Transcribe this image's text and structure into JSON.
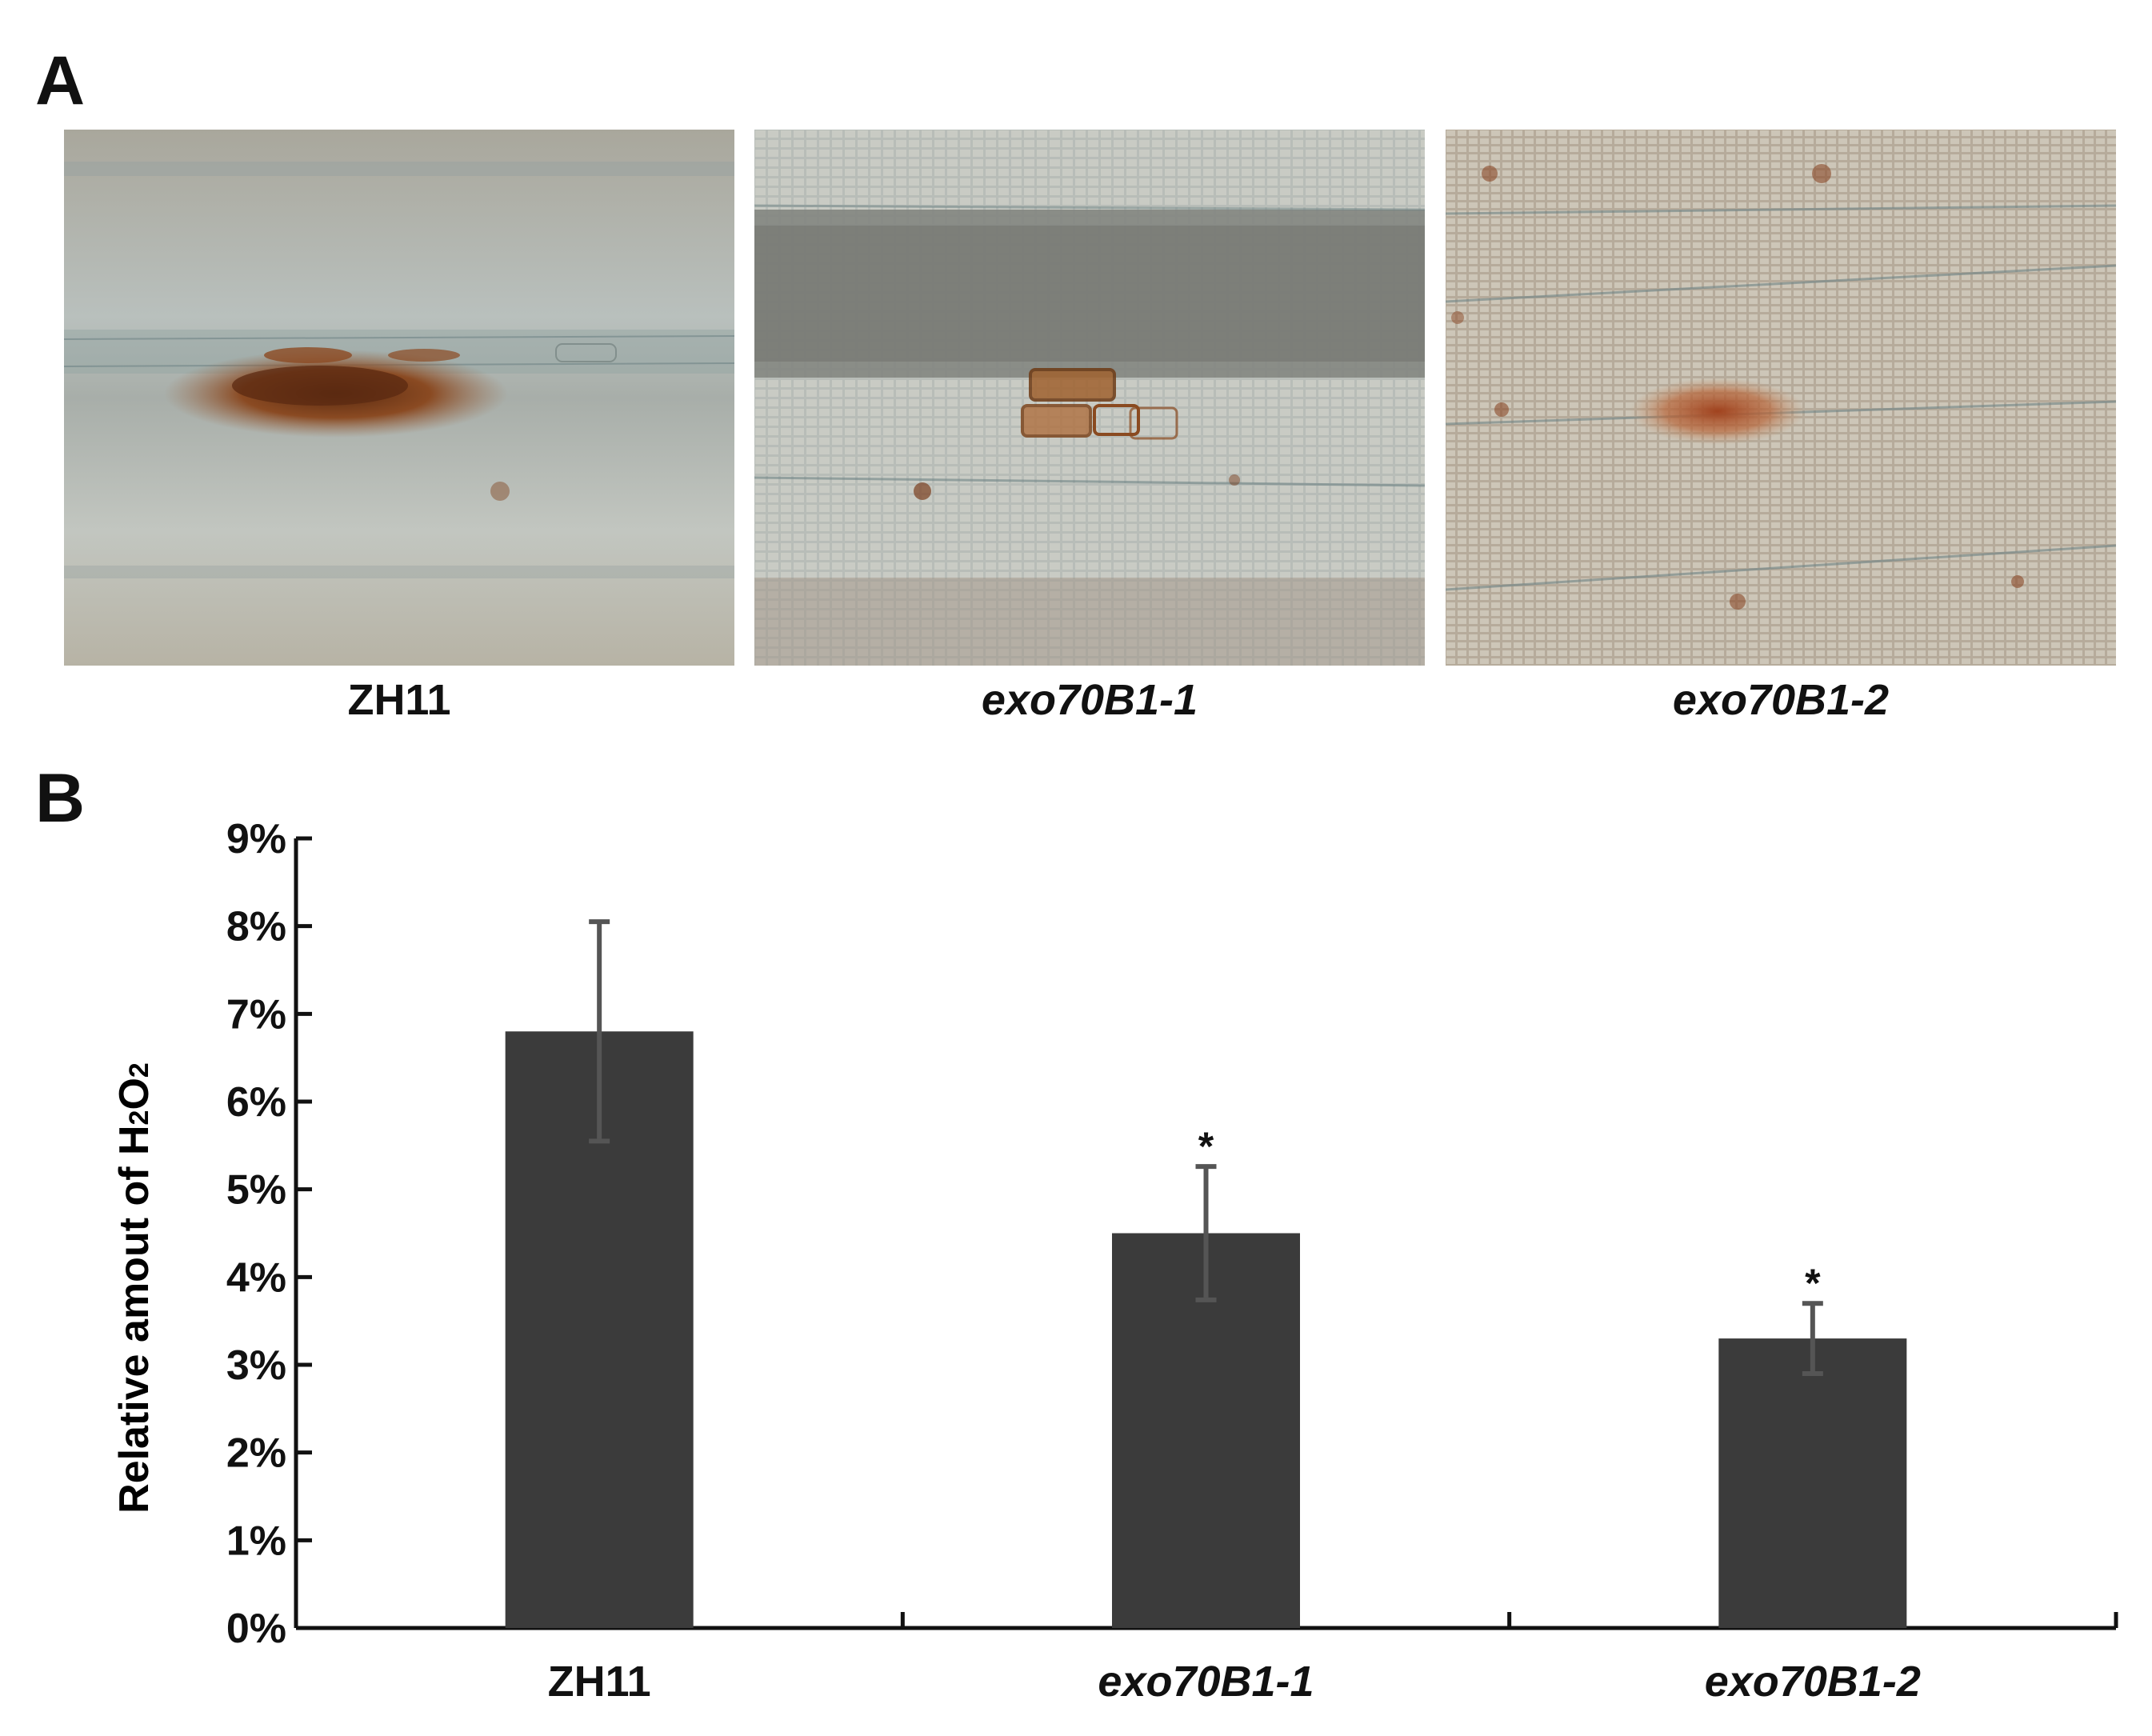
{
  "panel_a": {
    "letter": "A",
    "images": [
      {
        "label": "ZH11",
        "description_icon": "micrograph-dab-stain-large-spot"
      },
      {
        "label": "exo70B1-1",
        "description_icon": "micrograph-dab-stain-medium-spot"
      },
      {
        "label": "exo70B1-2",
        "description_icon": "micrograph-dab-stain-small-spot"
      }
    ]
  },
  "panel_b": {
    "letter": "B"
  },
  "chart_data": {
    "type": "bar",
    "categories": [
      "ZH11",
      "exo70B1-1",
      "exo70B1-2"
    ],
    "category_italic": [
      false,
      true,
      true
    ],
    "values": [
      6.8,
      4.5,
      3.3
    ],
    "errors": [
      1.25,
      0.76,
      0.4
    ],
    "significance": [
      "",
      "*",
      "*"
    ],
    "ylabel_prefix": "Relative amout of H",
    "ylabel_sub1": "2",
    "ylabel_mid": "O",
    "ylabel_sub2": "2",
    "ylim": [
      0,
      9
    ],
    "yticks": [
      0,
      1,
      2,
      3,
      4,
      5,
      6,
      7,
      8,
      9
    ],
    "ytick_labels": [
      "0%",
      "1%",
      "2%",
      "3%",
      "4%",
      "5%",
      "6%",
      "7%",
      "8%",
      "9%"
    ],
    "bar_color": "#3b3b3b",
    "error_color": "#555555",
    "grid": false,
    "legend": "none"
  }
}
